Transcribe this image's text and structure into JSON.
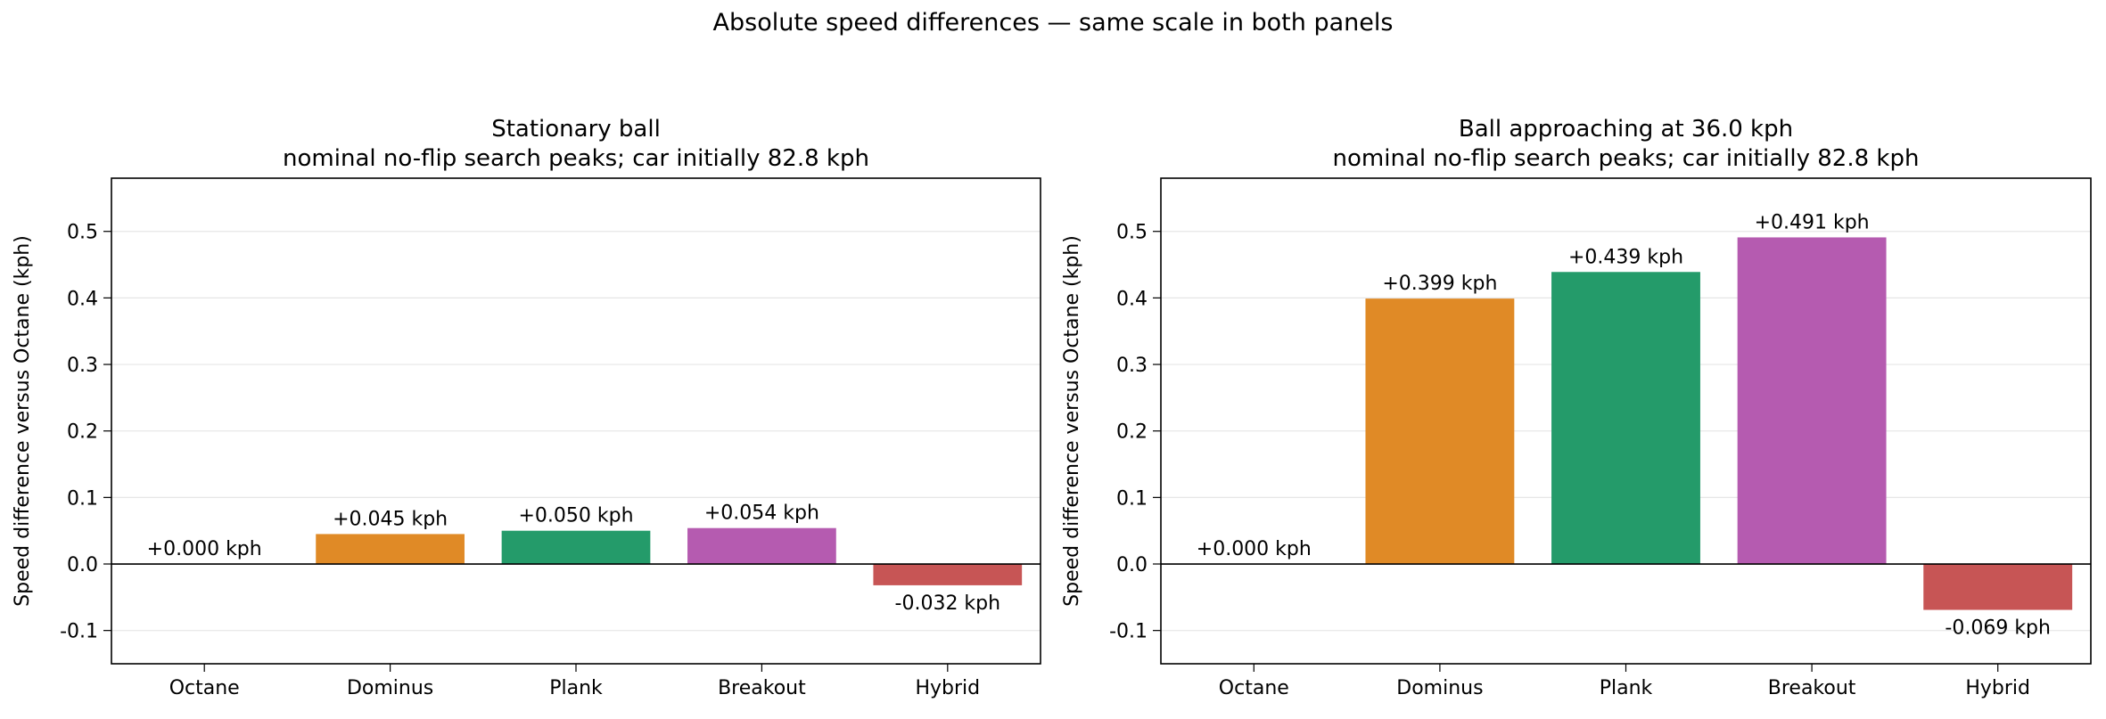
{
  "figure_title": "Absolute speed differences — same scale in both panels",
  "chart_data": [
    {
      "type": "bar",
      "title": "Stationary ball",
      "subtitle": "nominal no-flip search peaks; car initially 82.8 kph",
      "xlabel": "",
      "ylabel": "Speed difference versus Octane (kph)",
      "categories": [
        "Octane",
        "Dominus",
        "Plank",
        "Breakout",
        "Hybrid"
      ],
      "values": [
        0.0,
        0.045,
        0.05,
        0.054,
        -0.032
      ],
      "data_labels": [
        "+0.000 kph",
        "+0.045 kph",
        "+0.050 kph",
        "+0.054 kph",
        "-0.032 kph"
      ],
      "colors": [
        "#4c72b0",
        "#e08a26",
        "#249b6a",
        "#b55bb0",
        "#c75555"
      ],
      "ylim": [
        -0.15,
        0.58
      ],
      "yticks": [
        "-0.1",
        "0.0",
        "0.1",
        "0.2",
        "0.3",
        "0.4",
        "0.5"
      ],
      "grid": "y"
    },
    {
      "type": "bar",
      "title": "Ball approaching at 36.0 kph",
      "subtitle": "nominal no-flip search peaks; car initially 82.8 kph",
      "xlabel": "",
      "ylabel": "Speed difference versus Octane (kph)",
      "categories": [
        "Octane",
        "Dominus",
        "Plank",
        "Breakout",
        "Hybrid"
      ],
      "values": [
        0.0,
        0.399,
        0.439,
        0.491,
        -0.069
      ],
      "data_labels": [
        "+0.000 kph",
        "+0.399 kph",
        "+0.439 kph",
        "+0.491 kph",
        "-0.069 kph"
      ],
      "colors": [
        "#4c72b0",
        "#e08a26",
        "#249b6a",
        "#b55bb0",
        "#c75555"
      ],
      "ylim": [
        -0.15,
        0.58
      ],
      "yticks": [
        "-0.1",
        "0.0",
        "0.1",
        "0.2",
        "0.3",
        "0.4",
        "0.5"
      ],
      "grid": "y"
    }
  ]
}
